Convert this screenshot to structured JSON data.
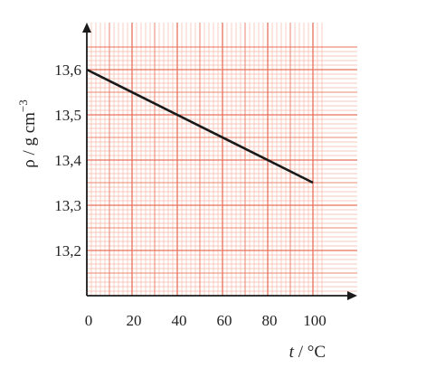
{
  "chart_data": {
    "type": "line",
    "title": "",
    "xlabel": {
      "var": "t",
      "unit": " / °C"
    },
    "ylabel": {
      "var": "ρ",
      "unit": " / g cm",
      "sup": "−3"
    },
    "xlim": [
      0,
      104
    ],
    "ylim": [
      13.1,
      13.65
    ],
    "x_ticks": [
      0,
      20,
      40,
      60,
      80,
      100
    ],
    "x_tick_labels": [
      "0",
      "20",
      "40",
      "60",
      "80",
      "100"
    ],
    "y_ticks": [
      13.2,
      13.3,
      13.4,
      13.5,
      13.6
    ],
    "y_tick_labels": [
      "13,2",
      "13,3",
      "13,4",
      "13,5",
      "13,6"
    ],
    "grid": "graph-paper",
    "series": [
      {
        "x": [
          0,
          100
        ],
        "y": [
          13.6,
          13.35
        ]
      }
    ],
    "colors": {
      "grid_minor": "#f6b9a8",
      "grid_major": "#e8715a",
      "line": "#1a1a1a",
      "axis": "#1a1a1a"
    }
  }
}
